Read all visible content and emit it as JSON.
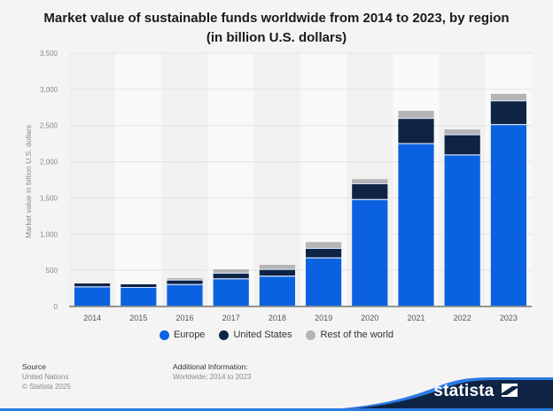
{
  "chart_data": {
    "type": "bar",
    "stacked": true,
    "title": "Market value of sustainable funds worldwide from 2014 to 2023, by region (in billion U.S. dollars)",
    "xlabel": "",
    "ylabel": "Market value in billion U.S. dollars",
    "ylim": [
      0,
      3500
    ],
    "yticks": [
      0,
      500,
      1000,
      1500,
      2000,
      2500,
      3000,
      3500
    ],
    "ytick_labels": [
      "0",
      "500",
      "1,000",
      "1,500",
      "2,000",
      "2,500",
      "3,000",
      "3,500"
    ],
    "grid": true,
    "legend_position": "bottom",
    "categories": [
      "2014",
      "2015",
      "2016",
      "2017",
      "2018",
      "2019",
      "2020",
      "2021",
      "2022",
      "2023"
    ],
    "series": [
      {
        "name": "Europe",
        "color": "#0b62e0",
        "values": [
          265,
          257,
          297,
          376,
          413,
          665,
          1471,
          2244,
          2088,
          2507
        ]
      },
      {
        "name": "United States",
        "color": "#0f2444",
        "values": [
          53,
          49,
          62,
          77,
          93,
          131,
          218,
          349,
          279,
          329
        ]
      },
      {
        "name": "Rest of the world",
        "color": "#b5b5b5",
        "values": [
          0,
          0,
          33,
          61,
          69,
          94,
          71,
          111,
          78,
          102
        ]
      }
    ]
  },
  "footer": {
    "source_heading": "Source",
    "source_lines": [
      "United Nations",
      "© Statista 2025"
    ],
    "info_heading": "Additional Information:",
    "info_text": "Worldwide; 2014 to 2023"
  },
  "brand": {
    "name": "statista"
  }
}
